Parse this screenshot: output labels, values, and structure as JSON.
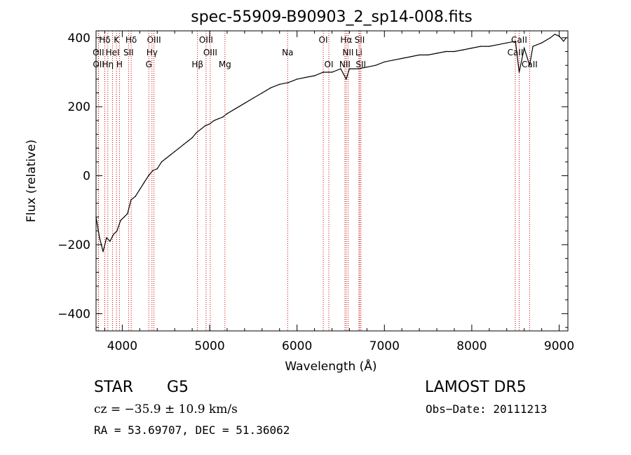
{
  "chart_data": {
    "type": "line",
    "title": "spec-55909-B90903_2_sp14-008.fits",
    "xlabel": "Wavelength (Å)",
    "ylabel": "Flux (relative)",
    "xlim": [
      3700,
      9100
    ],
    "ylim": [
      -450,
      420
    ],
    "xticks": [
      4000,
      5000,
      6000,
      7000,
      8000,
      9000
    ],
    "yticks": [
      -400,
      -200,
      0,
      200,
      400
    ],
    "grid": false,
    "series": [
      {
        "x": [
          3700,
          3740,
          3780,
          3820,
          3860,
          3900,
          3940,
          3980,
          4020,
          4060,
          4100,
          4150,
          4200,
          4250,
          4300,
          4350,
          4400,
          4450,
          4500,
          4550,
          4600,
          4650,
          4700,
          4750,
          4800,
          4850,
          4900,
          4950,
          5000,
          5050,
          5100,
          5150,
          5200,
          5300,
          5400,
          5500,
          5600,
          5700,
          5800,
          5900,
          6000,
          6100,
          6200,
          6300,
          6400,
          6500,
          6563,
          6600,
          6700,
          6800,
          6900,
          7000,
          7100,
          7200,
          7300,
          7400,
          7500,
          7600,
          7700,
          7800,
          7900,
          8000,
          8100,
          8200,
          8300,
          8400,
          8500,
          8542,
          8600,
          8662,
          8700,
          8800,
          8900,
          8950,
          9000,
          9050,
          9080
        ],
        "y": [
          -120,
          -180,
          -220,
          -180,
          -190,
          -170,
          -160,
          -130,
          -120,
          -110,
          -70,
          -60,
          -40,
          -20,
          0,
          15,
          20,
          40,
          50,
          60,
          70,
          80,
          90,
          100,
          110,
          125,
          135,
          145,
          150,
          160,
          165,
          170,
          180,
          195,
          210,
          225,
          240,
          255,
          265,
          270,
          280,
          285,
          290,
          300,
          300,
          310,
          280,
          310,
          310,
          315,
          320,
          330,
          335,
          340,
          345,
          350,
          350,
          355,
          360,
          360,
          365,
          370,
          375,
          375,
          380,
          385,
          390,
          300,
          370,
          320,
          375,
          385,
          400,
          410,
          405,
          390,
          400
        ]
      }
    ],
    "spectral_lines": [
      {
        "label": "Hδ",
        "x": 3800,
        "row": 0
      },
      {
        "label": "K",
        "x": 3934,
        "row": 0
      },
      {
        "label": "Hδ",
        "x": 4102,
        "row": 0
      },
      {
        "label": "OIII",
        "x": 4363,
        "row": 0
      },
      {
        "label": "OIII",
        "x": 4959,
        "row": 0
      },
      {
        "label": "OI",
        "x": 6300,
        "row": 0
      },
      {
        "label": "Hα",
        "x": 6563,
        "row": 0
      },
      {
        "label": "SII",
        "x": 6717,
        "row": 0
      },
      {
        "label": "CaII",
        "x": 8542,
        "row": 0
      },
      {
        "label": "OII",
        "x": 3727,
        "row": 1
      },
      {
        "label": "HeI",
        "x": 3889,
        "row": 1
      },
      {
        "label": "SII",
        "x": 4072,
        "row": 1
      },
      {
        "label": "Hγ",
        "x": 4340,
        "row": 1
      },
      {
        "label": "OIII",
        "x": 5007,
        "row": 1
      },
      {
        "label": "Na",
        "x": 5893,
        "row": 1
      },
      {
        "label": "NII",
        "x": 6584,
        "row": 1
      },
      {
        "label": "Li",
        "x": 6708,
        "row": 1
      },
      {
        "label": "CaII",
        "x": 8498,
        "row": 1
      },
      {
        "label": "OII",
        "x": 3729,
        "row": 2
      },
      {
        "label": "Hη",
        "x": 3835,
        "row": 2
      },
      {
        "label": "H",
        "x": 3968,
        "row": 2
      },
      {
        "label": "G",
        "x": 4304,
        "row": 2
      },
      {
        "label": "Hβ",
        "x": 4861,
        "row": 2
      },
      {
        "label": "Mg",
        "x": 5175,
        "row": 2
      },
      {
        "label": "OI",
        "x": 6364,
        "row": 2
      },
      {
        "label": "NII",
        "x": 6548,
        "row": 2
      },
      {
        "label": "SII",
        "x": 6731,
        "row": 2
      },
      {
        "label": "CaII",
        "x": 8662,
        "row": 2
      }
    ]
  },
  "info": {
    "object_class": "STAR",
    "subclass": "G5",
    "survey": "LAMOST DR5",
    "cz": "cz = −35.9 ± 10.9 km/s",
    "obs_date": "Obs−Date: 20111213",
    "radec": "RA =  53.69707, DEC =  51.36062"
  }
}
